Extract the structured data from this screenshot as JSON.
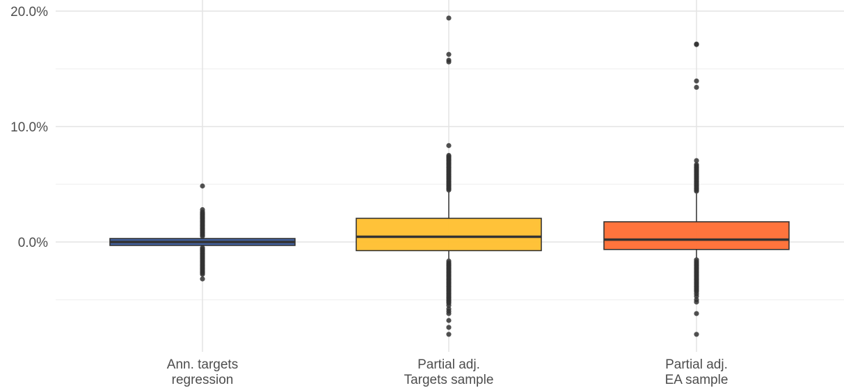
{
  "chart_data": {
    "type": "box",
    "title": "",
    "xlabel": "",
    "ylabel": "",
    "ylim": [
      -0.085,
      0.205
    ],
    "y_ticks": [
      {
        "value": 0.0,
        "label": "0.0%"
      },
      {
        "value": 0.1,
        "label": "10.0%"
      },
      {
        "value": 0.2,
        "label": "20.0%"
      }
    ],
    "y_minor_gridlines": [
      -0.05,
      0.05,
      0.15
    ],
    "grid": true,
    "legend": "none",
    "categories": [
      {
        "label_lines": [
          "Ann. targets",
          "regression"
        ],
        "color": "#3a5a9a",
        "stats": {
          "q1": -0.003,
          "median": 0.0,
          "q3": 0.003,
          "whisker_low": -0.003,
          "whisker_high": 0.003
        },
        "outliers_high": [
          0.0485,
          0.028,
          0.026,
          0.025,
          0.024,
          0.023,
          0.022,
          0.021,
          0.02,
          0.019,
          0.018,
          0.017,
          0.016,
          0.015,
          0.014,
          0.013,
          0.012,
          0.011,
          0.01,
          0.009,
          0.008,
          0.007,
          0.006,
          0.005
        ],
        "outliers_low": [
          -0.005,
          -0.006,
          -0.007,
          -0.008,
          -0.009,
          -0.01,
          -0.011,
          -0.012,
          -0.013,
          -0.014,
          -0.015,
          -0.016,
          -0.017,
          -0.018,
          -0.019,
          -0.02,
          -0.021,
          -0.022,
          -0.023,
          -0.024,
          -0.025,
          -0.026,
          -0.027,
          -0.028,
          -0.032
        ]
      },
      {
        "label_lines": [
          "Partial adj.",
          "Targets sample"
        ],
        "color": "#ffbf2e",
        "stats": {
          "q1": -0.0075,
          "median": 0.0045,
          "q3": 0.0205,
          "whisker_low": -0.0145,
          "whisker_high": 0.0435
        },
        "outliers_high": [
          0.194,
          0.1625,
          0.1575,
          0.156,
          0.0835,
          0.075,
          0.074,
          0.073,
          0.072,
          0.071,
          0.07,
          0.069,
          0.068,
          0.067,
          0.066,
          0.065,
          0.064,
          0.063,
          0.062,
          0.061,
          0.06,
          0.059,
          0.058,
          0.057,
          0.056,
          0.055,
          0.054,
          0.053,
          0.052,
          0.051,
          0.05,
          0.049,
          0.048,
          0.047,
          0.046,
          0.045
        ],
        "outliers_low": [
          -0.0165,
          -0.018,
          -0.019,
          -0.02,
          -0.021,
          -0.022,
          -0.023,
          -0.024,
          -0.025,
          -0.026,
          -0.027,
          -0.028,
          -0.029,
          -0.03,
          -0.031,
          -0.032,
          -0.033,
          -0.034,
          -0.035,
          -0.036,
          -0.037,
          -0.038,
          -0.039,
          -0.04,
          -0.041,
          -0.042,
          -0.043,
          -0.044,
          -0.045,
          -0.046,
          -0.047,
          -0.048,
          -0.049,
          -0.05,
          -0.051,
          -0.052,
          -0.053,
          -0.055,
          -0.058,
          -0.06,
          -0.062,
          -0.068,
          -0.074,
          -0.08
        ]
      },
      {
        "label_lines": [
          "Partial adj.",
          "EA sample"
        ],
        "color": "#ff6d33",
        "stats": {
          "q1": -0.0065,
          "median": 0.002,
          "q3": 0.0175,
          "whisker_low": -0.014,
          "whisker_high": 0.042
        },
        "outliers_high": [
          0.1715,
          0.171,
          0.1395,
          0.134,
          0.0705,
          0.067,
          0.066,
          0.065,
          0.064,
          0.063,
          0.062,
          0.061,
          0.06,
          0.059,
          0.058,
          0.057,
          0.056,
          0.055,
          0.054,
          0.053,
          0.052,
          0.051,
          0.05,
          0.049,
          0.048,
          0.047,
          0.046,
          0.045,
          0.044
        ],
        "outliers_low": [
          -0.0155,
          -0.017,
          -0.018,
          -0.019,
          -0.02,
          -0.021,
          -0.022,
          -0.023,
          -0.024,
          -0.025,
          -0.026,
          -0.027,
          -0.028,
          -0.029,
          -0.03,
          -0.031,
          -0.032,
          -0.033,
          -0.034,
          -0.035,
          -0.036,
          -0.037,
          -0.038,
          -0.039,
          -0.04,
          -0.041,
          -0.042,
          -0.043,
          -0.045,
          -0.047,
          -0.05,
          -0.052,
          -0.062,
          -0.08
        ]
      }
    ]
  }
}
